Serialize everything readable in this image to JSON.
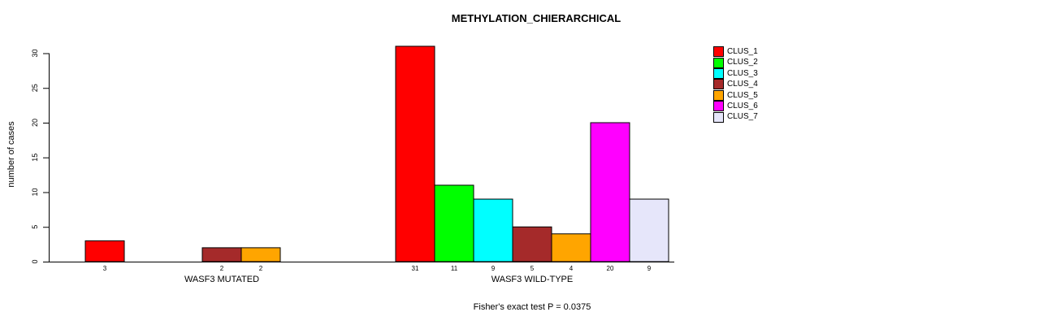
{
  "chart_data": {
    "type": "bar",
    "title": "METHYLATION_CHIERARCHICAL",
    "ylabel": "number of cases",
    "xlabel": "",
    "ylim": [
      0,
      30
    ],
    "yticks": [
      0,
      5,
      10,
      15,
      20,
      25,
      30
    ],
    "grid": false,
    "legend_position": "top-right",
    "clusters": [
      "CLUS_1",
      "CLUS_2",
      "CLUS_3",
      "CLUS_4",
      "CLUS_5",
      "CLUS_6",
      "CLUS_7"
    ],
    "colors": [
      "#FF0000",
      "#00FF00",
      "#00FFFF",
      "#A52A2A",
      "#FFA500",
      "#FF00FF",
      "#E6E6FA"
    ],
    "groups": [
      {
        "label": "WASF3 MUTATED",
        "values": [
          3,
          0,
          0,
          2,
          2,
          0,
          0
        ]
      },
      {
        "label": "WASF3 WILD-TYPE",
        "values": [
          31,
          11,
          9,
          5,
          4,
          20,
          9
        ]
      }
    ],
    "annotation": "Fisher's exact test P = 0.0375"
  }
}
